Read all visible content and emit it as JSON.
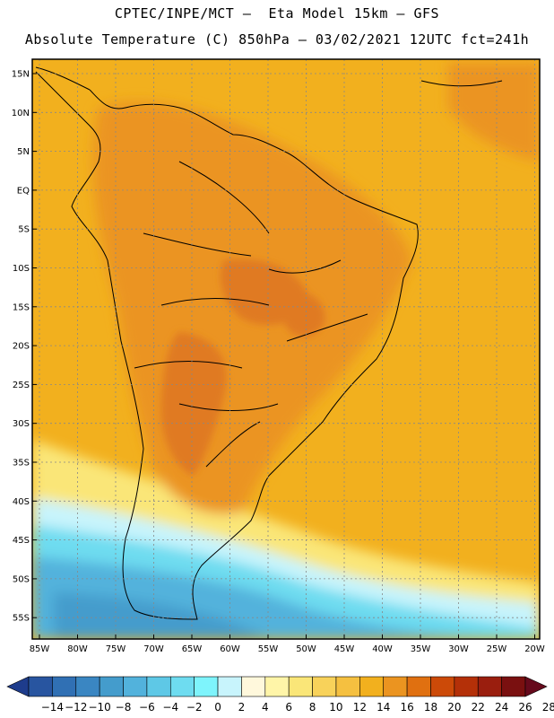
{
  "header": {
    "line1": "CPTEC/INPE/MCT –  Eta Model 15km – GFS",
    "line2": "Absolute Temperature (C) 850hPa – 03/02/2021 12UTC fct=241h"
  },
  "map": {
    "lat_labels": [
      "15N",
      "10N",
      "5N",
      "EQ",
      "5S",
      "10S",
      "15S",
      "20S",
      "25S",
      "30S",
      "35S",
      "40S",
      "45S",
      "50S",
      "55S"
    ],
    "lon_labels": [
      "85W",
      "80W",
      "75W",
      "70W",
      "65W",
      "60W",
      "55W",
      "50W",
      "45W",
      "40W",
      "35W",
      "30W",
      "25W",
      "20W"
    ]
  },
  "legend": {
    "labels": [
      "-14",
      "-12",
      "-10",
      "-8",
      "-6",
      "-4",
      "-2",
      "0",
      "2",
      "4",
      "6",
      "8",
      "10",
      "12",
      "14",
      "16",
      "18",
      "20",
      "22",
      "24",
      "26",
      "28"
    ],
    "colors": [
      "#1e3c8c",
      "#2855a0",
      "#3070b4",
      "#3a86c2",
      "#449ccc",
      "#52b2dc",
      "#5ec8e6",
      "#6edcf0",
      "#7ef4fc",
      "#c8f4fc",
      "#fff8dc",
      "#fff5a8",
      "#fae678",
      "#f8d25a",
      "#f5c040",
      "#f2b01e",
      "#eb9420",
      "#e07010",
      "#cc4a08",
      "#b43008",
      "#9a1e0e",
      "#7a1010",
      "#660a1c"
    ]
  },
  "field_colors": {
    "land_hot": "#e07a20",
    "land_warm": "#eb9420",
    "ocean_warm": "#f2b01e",
    "ocean_mild": "#f5c040",
    "cool": "#fae678",
    "cold1": "#c8f4fc",
    "cold2": "#6edcf0",
    "cold3": "#52b2dc",
    "cold4": "#449ccc"
  }
}
